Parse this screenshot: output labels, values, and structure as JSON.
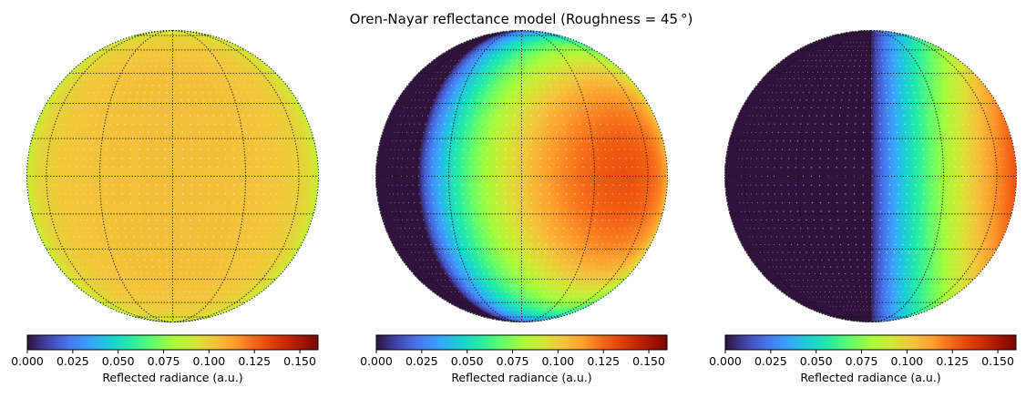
{
  "figure": {
    "title": "Oren-Nayar reflectance model (Roughness = 45$^\\circ$)",
    "title_display": "Oren-Nayar reflectance model (Roughness = 45 °)"
  },
  "colormap": {
    "name": "turbo",
    "stops": [
      "#30123b",
      "#4145ab",
      "#4675ed",
      "#39a2fc",
      "#1bcfd4",
      "#24eca6",
      "#61fc6c",
      "#a4fc3b",
      "#d1e834",
      "#f3c63a",
      "#fe9b2d",
      "#f36315",
      "#d93806",
      "#b11901",
      "#7a0403"
    ]
  },
  "chart_data": [
    {
      "type": "heatmap",
      "projection": "orthographic",
      "illumination": "front-lit",
      "value_range": [
        0.0,
        0.16
      ],
      "center_value": 0.105,
      "limb_value": 0.085,
      "gridlines": {
        "meridians_deg": [
          -90,
          -60,
          -30,
          0,
          30,
          60,
          90
        ],
        "parallels_deg": [
          -75,
          -60,
          -45,
          -30,
          -15,
          0,
          15,
          30,
          45,
          60,
          75
        ],
        "style": "dotted"
      },
      "colorbar": {
        "orientation": "horizontal",
        "ticks": [
          "0.000",
          "0.025",
          "0.050",
          "0.075",
          "0.100",
          "0.125",
          "0.150"
        ],
        "label": "Reflected radiance (a.u.)"
      }
    },
    {
      "type": "heatmap",
      "projection": "orthographic",
      "illumination": "side-lit",
      "light_longitude_deg": 45,
      "value_range": [
        0.0,
        0.16
      ],
      "peak_value": 0.13,
      "gridlines": {
        "meridians_deg": [
          -90,
          -60,
          -30,
          0,
          30,
          60,
          90
        ],
        "parallels_deg": [
          -75,
          -60,
          -45,
          -30,
          -15,
          0,
          15,
          30,
          45,
          60,
          75
        ],
        "style": "dotted"
      },
      "colorbar": {
        "orientation": "horizontal",
        "ticks": [
          "0.000",
          "0.025",
          "0.050",
          "0.075",
          "0.100",
          "0.125",
          "0.150"
        ],
        "label": "Reflected radiance (a.u.)"
      }
    },
    {
      "type": "heatmap",
      "projection": "orthographic",
      "illumination": "side-lit",
      "light_longitude_deg": 90,
      "value_range": [
        0.0,
        0.16
      ],
      "peak_value": 0.13,
      "gridlines": {
        "meridians_deg": [
          -90,
          -60,
          -30,
          0,
          30,
          60,
          90
        ],
        "parallels_deg": [
          -75,
          -60,
          -45,
          -30,
          -15,
          0,
          15,
          30,
          45,
          60,
          75
        ],
        "style": "dotted"
      },
      "colorbar": {
        "orientation": "horizontal",
        "ticks": [
          "0.000",
          "0.025",
          "0.050",
          "0.075",
          "0.100",
          "0.125",
          "0.150"
        ],
        "label": "Reflected radiance (a.u.)"
      }
    }
  ]
}
